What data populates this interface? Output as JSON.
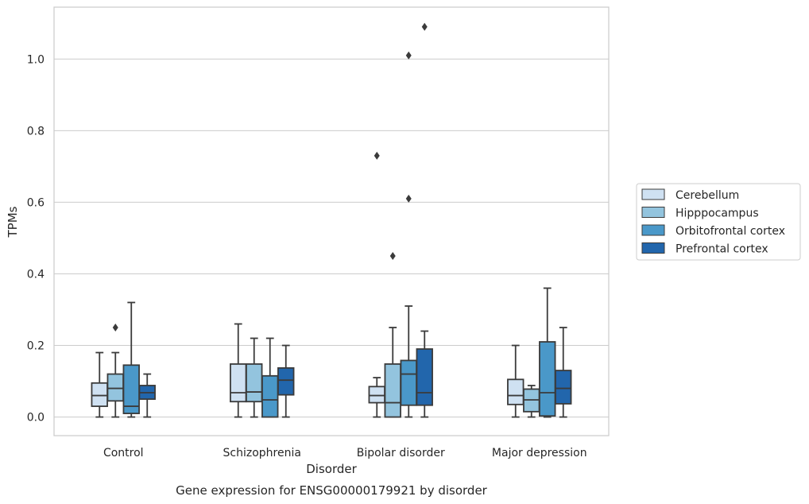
{
  "chart_data": {
    "type": "box",
    "title": "Gene expression for ENSG00000179921 by disorder",
    "xlabel": "Disorder",
    "ylabel": "TPMs",
    "ylim": [
      -0.052,
      1.145
    ],
    "yticks": [
      "0.0",
      "0.2",
      "0.4",
      "0.6",
      "0.8",
      "1.0"
    ],
    "grid": "horizontal",
    "legend_position": "right",
    "categories": [
      "Control",
      "Schizophrenia",
      "Bipolar disorder",
      "Major depression"
    ],
    "series": [
      {
        "name": "Cerebellum",
        "color": "#cfe1f2",
        "boxes": [
          {
            "whislo": 0.0,
            "q1": 0.03,
            "median": 0.06,
            "q3": 0.095,
            "whishi": 0.18,
            "fliers": []
          },
          {
            "whislo": 0.0,
            "q1": 0.043,
            "median": 0.068,
            "q3": 0.148,
            "whishi": 0.26,
            "fliers": []
          },
          {
            "whislo": 0.0,
            "q1": 0.04,
            "median": 0.06,
            "q3": 0.085,
            "whishi": 0.11,
            "fliers": [
              0.73
            ]
          },
          {
            "whislo": 0.0,
            "q1": 0.035,
            "median": 0.06,
            "q3": 0.105,
            "whishi": 0.2,
            "fliers": []
          }
        ]
      },
      {
        "name": "Hipppocampus",
        "color": "#93c4de",
        "boxes": [
          {
            "whislo": 0.0,
            "q1": 0.045,
            "median": 0.08,
            "q3": 0.12,
            "whishi": 0.18,
            "fliers": [
              0.25
            ]
          },
          {
            "whislo": 0.0,
            "q1": 0.043,
            "median": 0.07,
            "q3": 0.148,
            "whishi": 0.22,
            "fliers": []
          },
          {
            "whislo": 0.0,
            "q1": 0.0,
            "median": 0.04,
            "q3": 0.148,
            "whishi": 0.25,
            "fliers": [
              0.45
            ]
          },
          {
            "whislo": 0.0,
            "q1": 0.015,
            "median": 0.048,
            "q3": 0.078,
            "whishi": 0.088,
            "fliers": []
          }
        ]
      },
      {
        "name": "Orbitofrontal cortex",
        "color": "#4a98c9",
        "boxes": [
          {
            "whislo": 0.0,
            "q1": 0.01,
            "median": 0.03,
            "q3": 0.145,
            "whishi": 0.32,
            "fliers": []
          },
          {
            "whislo": 0.0,
            "q1": 0.0,
            "median": 0.048,
            "q3": 0.115,
            "whishi": 0.22,
            "fliers": []
          },
          {
            "whislo": 0.0,
            "q1": 0.033,
            "median": 0.12,
            "q3": 0.158,
            "whishi": 0.31,
            "fliers": [
              0.61,
              1.01
            ]
          },
          {
            "whislo": 0.0,
            "q1": 0.003,
            "median": 0.068,
            "q3": 0.21,
            "whishi": 0.36,
            "fliers": []
          }
        ]
      },
      {
        "name": "Prefrontal cortex",
        "color": "#2266ac",
        "boxes": [
          {
            "whislo": 0.0,
            "q1": 0.05,
            "median": 0.068,
            "q3": 0.088,
            "whishi": 0.12,
            "fliers": []
          },
          {
            "whislo": 0.0,
            "q1": 0.062,
            "median": 0.103,
            "q3": 0.137,
            "whishi": 0.2,
            "fliers": []
          },
          {
            "whislo": 0.0,
            "q1": 0.033,
            "median": 0.068,
            "q3": 0.19,
            "whishi": 0.24,
            "fliers": [
              1.09
            ]
          },
          {
            "whislo": 0.0,
            "q1": 0.037,
            "median": 0.08,
            "q3": 0.13,
            "whishi": 0.25,
            "fliers": []
          }
        ]
      }
    ]
  }
}
